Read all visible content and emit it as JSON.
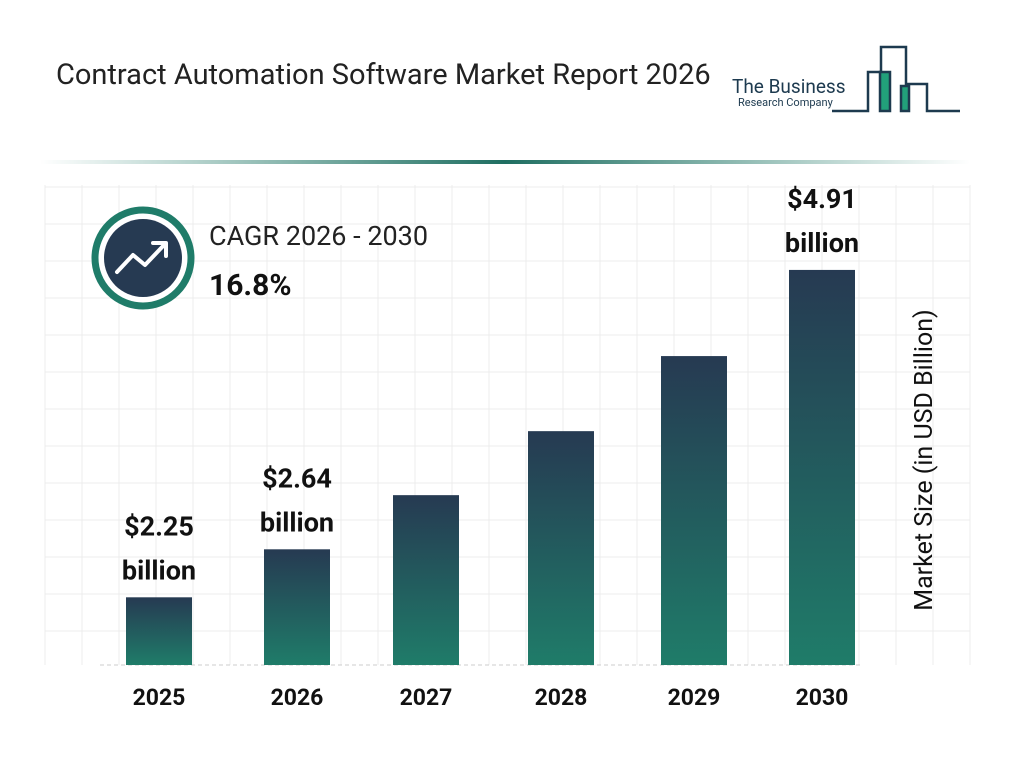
{
  "chart_data": {
    "type": "bar",
    "title": "Contract Automation Software Market Report 2026",
    "brand": [
      "The Business",
      "Research Company"
    ],
    "cagr_label": "CAGR 2026 - 2030",
    "cagr_value": "16.8%",
    "y_label": "Market Size (in USD Billion)",
    "categories": [
      "2025",
      "2026",
      "2027",
      "2028",
      "2029",
      "2030"
    ],
    "values": [
      2.25,
      2.64,
      3.08,
      3.6,
      4.21,
      4.91
    ],
    "value_labels": [
      "$2.25 billion",
      "$2.64 billion",
      null,
      null,
      null,
      "$4.91 billion"
    ],
    "color": [
      "#263a52",
      "#1f7c69"
    ],
    "ylim": [
      1.7,
      5.6
    ],
    "grid": true
  }
}
